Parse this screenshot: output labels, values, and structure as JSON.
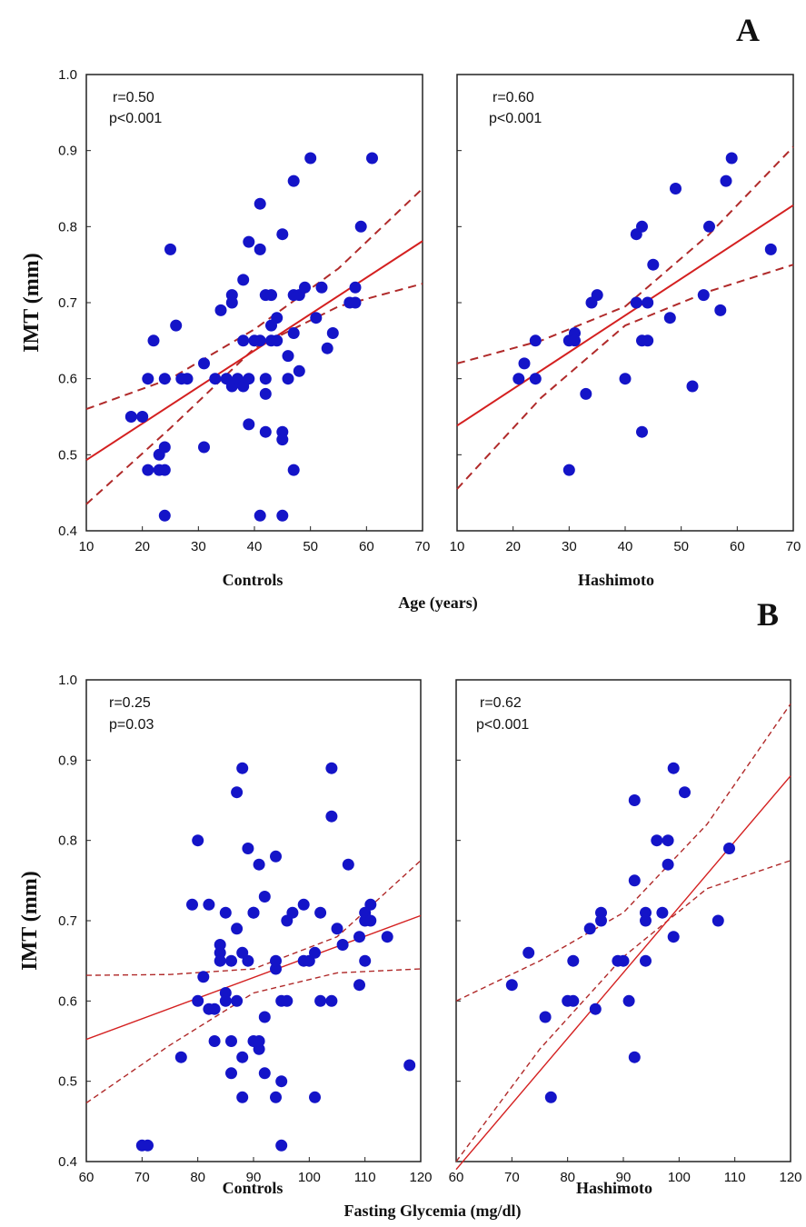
{
  "chart_data": [
    {
      "type": "scatter",
      "panel_label": "A",
      "group_label": "Controls",
      "xlabel": "Age (years)",
      "ylabel": "IMT (mm)",
      "xlim": [
        10,
        70
      ],
      "ylim": [
        0.4,
        1.0
      ],
      "xticks": [
        "10",
        "20",
        "30",
        "40",
        "50",
        "60",
        "70"
      ],
      "yticks": [
        "0.4",
        "0.5",
        "0.6",
        "0.7",
        "0.8",
        "0.9",
        "1.0"
      ],
      "stats": {
        "r": "r=0.50",
        "p": "p<0.001"
      },
      "regression": {
        "intercept": 0.445,
        "slope": 0.0048
      },
      "ci_lower": [
        [
          10,
          0.435
        ],
        [
          25,
          0.535
        ],
        [
          40,
          0.64
        ],
        [
          55,
          0.695
        ],
        [
          70,
          0.725
        ]
      ],
      "ci_upper": [
        [
          10,
          0.56
        ],
        [
          25,
          0.6
        ],
        [
          40,
          0.665
        ],
        [
          55,
          0.745
        ],
        [
          70,
          0.85
        ]
      ],
      "colors": {
        "point": "#1414c8",
        "fit": "#d42020",
        "ci": "#b02a2a"
      },
      "points": [
        [
          18,
          0.55
        ],
        [
          20,
          0.55
        ],
        [
          21,
          0.48
        ],
        [
          21,
          0.6
        ],
        [
          22,
          0.65
        ],
        [
          23,
          0.48
        ],
        [
          23,
          0.5
        ],
        [
          24,
          0.51
        ],
        [
          24,
          0.48
        ],
        [
          24,
          0.42
        ],
        [
          24,
          0.6
        ],
        [
          25,
          0.77
        ],
        [
          26,
          0.67
        ],
        [
          27,
          0.6
        ],
        [
          28,
          0.6
        ],
        [
          31,
          0.51
        ],
        [
          31,
          0.62
        ],
        [
          33,
          0.6
        ],
        [
          34,
          0.69
        ],
        [
          35,
          0.6
        ],
        [
          36,
          0.71
        ],
        [
          36,
          0.7
        ],
        [
          36,
          0.59
        ],
        [
          37,
          0.6
        ],
        [
          38,
          0.73
        ],
        [
          38,
          0.65
        ],
        [
          38,
          0.59
        ],
        [
          39,
          0.78
        ],
        [
          39,
          0.6
        ],
        [
          39,
          0.54
        ],
        [
          40,
          0.65
        ],
        [
          41,
          0.83
        ],
        [
          41,
          0.77
        ],
        [
          41,
          0.42
        ],
        [
          41,
          0.65
        ],
        [
          42,
          0.6
        ],
        [
          42,
          0.58
        ],
        [
          42,
          0.53
        ],
        [
          42,
          0.71
        ],
        [
          43,
          0.65
        ],
        [
          43,
          0.71
        ],
        [
          43,
          0.67
        ],
        [
          44,
          0.68
        ],
        [
          44,
          0.65
        ],
        [
          45,
          0.79
        ],
        [
          45,
          0.53
        ],
        [
          45,
          0.52
        ],
        [
          45,
          0.42
        ],
        [
          46,
          0.63
        ],
        [
          46,
          0.6
        ],
        [
          47,
          0.86
        ],
        [
          47,
          0.71
        ],
        [
          47,
          0.66
        ],
        [
          47,
          0.48
        ],
        [
          48,
          0.71
        ],
        [
          48,
          0.61
        ],
        [
          49,
          0.72
        ],
        [
          50,
          0.89
        ],
        [
          51,
          0.68
        ],
        [
          52,
          0.72
        ],
        [
          53,
          0.64
        ],
        [
          54,
          0.66
        ],
        [
          57,
          0.7
        ],
        [
          58,
          0.72
        ],
        [
          58,
          0.7
        ],
        [
          59,
          0.8
        ],
        [
          61,
          0.89
        ]
      ]
    },
    {
      "type": "scatter",
      "panel_label": "",
      "group_label": "Hashimoto",
      "xlabel": "",
      "ylabel": "",
      "xlim": [
        10,
        70
      ],
      "ylim": [
        0.4,
        1.0
      ],
      "xticks": [
        "10",
        "20",
        "30",
        "40",
        "50",
        "60",
        "70"
      ],
      "yticks": [],
      "stats": {
        "r": "r=0.60",
        "p": "p<0.001"
      },
      "regression": {
        "intercept": 0.49,
        "slope": 0.00483
      },
      "ci_lower": [
        [
          10,
          0.455
        ],
        [
          25,
          0.575
        ],
        [
          40,
          0.67
        ],
        [
          55,
          0.715
        ],
        [
          70,
          0.75
        ]
      ],
      "ci_upper": [
        [
          10,
          0.62
        ],
        [
          25,
          0.65
        ],
        [
          40,
          0.695
        ],
        [
          55,
          0.79
        ],
        [
          70,
          0.905
        ]
      ],
      "colors": {
        "point": "#1414c8",
        "fit": "#d42020",
        "ci": "#b02a2a"
      },
      "points": [
        [
          21,
          0.6
        ],
        [
          22,
          0.62
        ],
        [
          24,
          0.65
        ],
        [
          24,
          0.6
        ],
        [
          30,
          0.48
        ],
        [
          30,
          0.65
        ],
        [
          31,
          0.66
        ],
        [
          31,
          0.65
        ],
        [
          33,
          0.58
        ],
        [
          34,
          0.7
        ],
        [
          35,
          0.71
        ],
        [
          40,
          0.6
        ],
        [
          42,
          0.79
        ],
        [
          42,
          0.7
        ],
        [
          43,
          0.8
        ],
        [
          43,
          0.65
        ],
        [
          43,
          0.53
        ],
        [
          44,
          0.7
        ],
        [
          44,
          0.65
        ],
        [
          45,
          0.75
        ],
        [
          48,
          0.68
        ],
        [
          49,
          0.85
        ],
        [
          52,
          0.59
        ],
        [
          54,
          0.71
        ],
        [
          55,
          0.8
        ],
        [
          57,
          0.69
        ],
        [
          58,
          0.86
        ],
        [
          59,
          0.89
        ],
        [
          66,
          0.77
        ]
      ]
    },
    {
      "type": "scatter",
      "panel_label": "B",
      "group_label": "Controls",
      "xlabel": "Fasting Glycemia (mg/dl)",
      "ylabel": "IMT (mm)",
      "xlim": [
        60,
        120
      ],
      "ylim": [
        0.4,
        1.0
      ],
      "xticks": [
        "60",
        "70",
        "80",
        "90",
        "100",
        "110",
        "120"
      ],
      "yticks": [
        "0.4",
        "0.5",
        "0.6",
        "0.7",
        "0.8",
        "0.9",
        "1.0"
      ],
      "stats": {
        "r": "r=0.25",
        "p": "p=0.03"
      },
      "regression": {
        "intercept": 0.398,
        "slope": 0.00257
      },
      "ci_lower": [
        [
          60,
          0.473
        ],
        [
          75,
          0.545
        ],
        [
          90,
          0.61
        ],
        [
          105,
          0.635
        ],
        [
          120,
          0.64
        ]
      ],
      "ci_upper": [
        [
          60,
          0.632
        ],
        [
          75,
          0.633
        ],
        [
          90,
          0.64
        ],
        [
          105,
          0.68
        ],
        [
          120,
          0.775
        ]
      ],
      "colors": {
        "point": "#1414c8",
        "fit": "#d42020",
        "ci": "#b02a2a"
      },
      "points": [
        [
          70,
          0.42
        ],
        [
          71,
          0.42
        ],
        [
          77,
          0.53
        ],
        [
          79,
          0.72
        ],
        [
          80,
          0.8
        ],
        [
          80,
          0.6
        ],
        [
          81,
          0.63
        ],
        [
          82,
          0.72
        ],
        [
          82,
          0.59
        ],
        [
          83,
          0.55
        ],
        [
          83,
          0.59
        ],
        [
          84,
          0.66
        ],
        [
          84,
          0.65
        ],
        [
          84,
          0.67
        ],
        [
          85,
          0.71
        ],
        [
          85,
          0.61
        ],
        [
          85,
          0.6
        ],
        [
          86,
          0.55
        ],
        [
          86,
          0.51
        ],
        [
          86,
          0.65
        ],
        [
          87,
          0.69
        ],
        [
          87,
          0.86
        ],
        [
          87,
          0.6
        ],
        [
          88,
          0.89
        ],
        [
          88,
          0.66
        ],
        [
          88,
          0.48
        ],
        [
          88,
          0.53
        ],
        [
          89,
          0.79
        ],
        [
          89,
          0.65
        ],
        [
          90,
          0.71
        ],
        [
          90,
          0.71
        ],
        [
          90,
          0.55
        ],
        [
          91,
          0.77
        ],
        [
          91,
          0.54
        ],
        [
          91,
          0.55
        ],
        [
          92,
          0.73
        ],
        [
          92,
          0.58
        ],
        [
          92,
          0.51
        ],
        [
          94,
          0.78
        ],
        [
          94,
          0.64
        ],
        [
          94,
          0.65
        ],
        [
          94,
          0.48
        ],
        [
          95,
          0.5
        ],
        [
          95,
          0.42
        ],
        [
          95,
          0.6
        ],
        [
          96,
          0.7
        ],
        [
          96,
          0.6
        ],
        [
          97,
          0.71
        ],
        [
          99,
          0.72
        ],
        [
          99,
          0.65
        ],
        [
          100,
          0.65
        ],
        [
          101,
          0.48
        ],
        [
          101,
          0.66
        ],
        [
          102,
          0.71
        ],
        [
          102,
          0.6
        ],
        [
          104,
          0.89
        ],
        [
          104,
          0.83
        ],
        [
          104,
          0.6
        ],
        [
          105,
          0.69
        ],
        [
          106,
          0.67
        ],
        [
          107,
          0.77
        ],
        [
          109,
          0.68
        ],
        [
          109,
          0.62
        ],
        [
          110,
          0.7
        ],
        [
          110,
          0.71
        ],
        [
          110,
          0.65
        ],
        [
          111,
          0.72
        ],
        [
          111,
          0.7
        ],
        [
          114,
          0.68
        ],
        [
          118,
          0.52
        ]
      ]
    },
    {
      "type": "scatter",
      "panel_label": "",
      "group_label": "Hashimoto",
      "xlabel": "",
      "ylabel": "",
      "xlim": [
        60,
        120
      ],
      "ylim": [
        0.4,
        1.0
      ],
      "xticks": [
        "60",
        "70",
        "80",
        "90",
        "100",
        "110",
        "120"
      ],
      "yticks": [],
      "stats": {
        "r": "r=0.62",
        "p": "p<0.001"
      },
      "regression": {
        "intercept": -0.1,
        "slope": 0.00817
      },
      "ci_lower": [
        [
          60,
          0.4
        ],
        [
          75,
          0.54
        ],
        [
          90,
          0.655
        ],
        [
          105,
          0.74
        ],
        [
          120,
          0.775
        ]
      ],
      "ci_upper": [
        [
          60,
          0.6
        ],
        [
          75,
          0.65
        ],
        [
          90,
          0.71
        ],
        [
          105,
          0.82
        ],
        [
          120,
          0.97
        ]
      ],
      "colors": {
        "point": "#1414c8",
        "fit": "#d42020",
        "ci": "#b02a2a"
      },
      "points": [
        [
          70,
          0.62
        ],
        [
          73,
          0.66
        ],
        [
          76,
          0.58
        ],
        [
          77,
          0.48
        ],
        [
          80,
          0.6
        ],
        [
          81,
          0.6
        ],
        [
          81,
          0.65
        ],
        [
          84,
          0.69
        ],
        [
          85,
          0.59
        ],
        [
          86,
          0.71
        ],
        [
          86,
          0.7
        ],
        [
          89,
          0.65
        ],
        [
          90,
          0.65
        ],
        [
          91,
          0.6
        ],
        [
          92,
          0.85
        ],
        [
          92,
          0.75
        ],
        [
          92,
          0.53
        ],
        [
          94,
          0.71
        ],
        [
          94,
          0.7
        ],
        [
          94,
          0.65
        ],
        [
          96,
          0.8
        ],
        [
          97,
          0.71
        ],
        [
          98,
          0.8
        ],
        [
          98,
          0.77
        ],
        [
          99,
          0.89
        ],
        [
          99,
          0.68
        ],
        [
          101,
          0.86
        ],
        [
          107,
          0.7
        ],
        [
          109,
          0.79
        ]
      ]
    }
  ]
}
